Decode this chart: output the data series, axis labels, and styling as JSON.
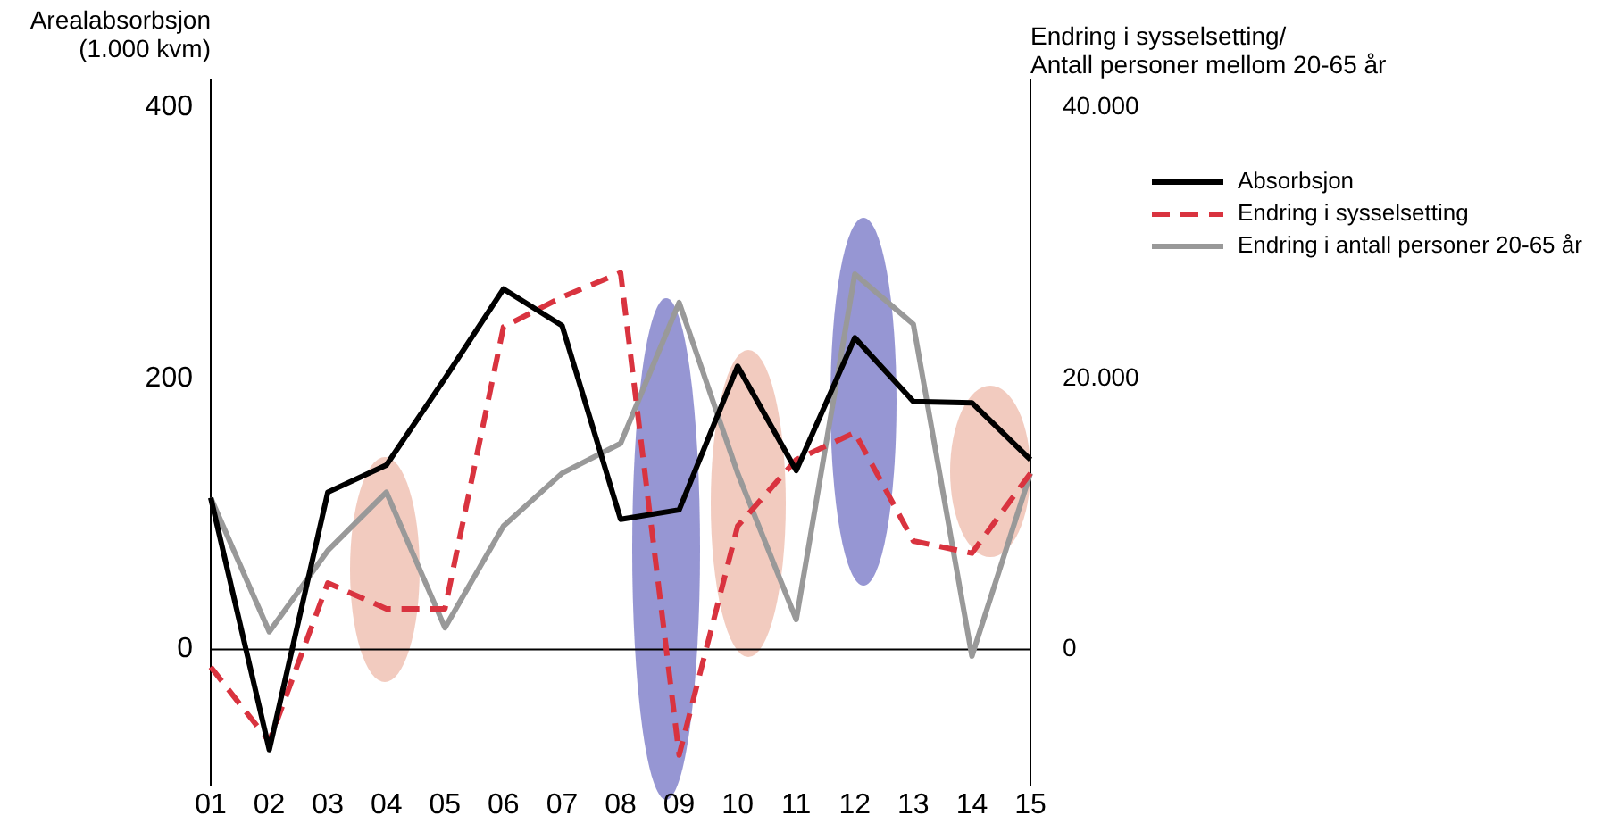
{
  "chart_data": {
    "type": "line",
    "ylabel": "Arealabsorbsjon\n(1.000 kvm)",
    "y2label": "Endring i sysselsetting/\nAntall personer mellom 20-65 år",
    "categories": [
      "01",
      "02",
      "03",
      "04",
      "05",
      "06",
      "07",
      "08",
      "09",
      "10",
      "11",
      "12",
      "13",
      "14",
      "15"
    ],
    "series": [
      {
        "name": "Absorbsjon",
        "color": "#000000",
        "line_style": "solid",
        "values": [
          112,
          -74,
          116,
          136,
          200,
          266,
          239,
          96,
          103,
          209,
          132,
          230,
          183,
          182,
          140
        ]
      },
      {
        "name": "Endring i sysselsetting",
        "color": "#d9333f",
        "line_style": "dashed",
        "axis": "y2",
        "values": [
          -1300,
          -6800,
          4900,
          3000,
          3000,
          23800,
          26000,
          27800,
          -7800,
          9100,
          14000,
          16000,
          8000,
          7100,
          13000
        ]
      },
      {
        "name": "Endring i antall personer 20-65 år",
        "color": "#999999",
        "line_style": "solid",
        "axis": "y2",
        "values": [
          11200,
          1300,
          7300,
          11600,
          1600,
          9100,
          13000,
          15200,
          25600,
          13000,
          2200,
          27700,
          24000,
          -500,
          13000
        ]
      }
    ],
    "ylim": [
      -100,
      420
    ],
    "yticks": [
      0,
      200,
      400
    ],
    "y2lim": [
      -10000,
      42000
    ],
    "y2ticks": [
      {
        "value": 0,
        "label": "0"
      },
      {
        "value": 20000,
        "label": "20.000"
      },
      {
        "value": 40000,
        "label": "40.000"
      }
    ],
    "ref_lines": [
      {
        "axis": "y",
        "value": 0,
        "color": "#000000"
      }
    ],
    "grid": false,
    "legend": "right",
    "marker": "none"
  }
}
